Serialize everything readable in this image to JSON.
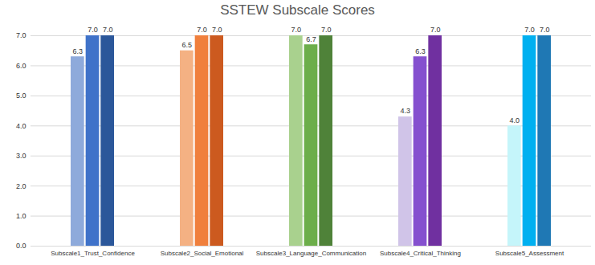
{
  "chart_data": {
    "type": "bar",
    "title": "SSTEW Subscale Scores",
    "categories": [
      "Subscale1_Trust_Confidence",
      "Subscale2_Social_Emotional",
      "Subscale3_Language_Communication",
      "Subscale4_Critical_Thinking",
      "Subscale5_Assessment"
    ],
    "series": [
      {
        "colors": [
          "#8eaadb",
          "#f4b183",
          "#a9d18e",
          "#d0c4e8",
          "#c5f5fa"
        ],
        "values": [
          6.3,
          6.5,
          7.0,
          4.3,
          4.0
        ],
        "value_labels": [
          "6.3",
          "6.5",
          "7.0",
          "4.3",
          "4.0"
        ]
      },
      {
        "colors": [
          "#3f72c9",
          "#f07f3c",
          "#6cae4a",
          "#8550cf",
          "#00b0f0"
        ],
        "values": [
          7.0,
          7.0,
          6.7,
          6.3,
          7.0
        ],
        "value_labels": [
          "7.0",
          "7.0",
          "6.7",
          "6.3",
          "7.0"
        ]
      },
      {
        "colors": [
          "#2b579a",
          "#cc5a1f",
          "#4f8239",
          "#7030a0",
          "#1f78b4"
        ],
        "values": [
          7.0,
          7.0,
          7.0,
          7.0,
          7.0
        ],
        "value_labels": [
          "7.0",
          "7.0",
          "7.0",
          "7.0",
          "7.0"
        ]
      }
    ],
    "ylim": [
      0,
      7
    ],
    "yticks": [
      {
        "value": 0,
        "label": "0.0"
      },
      {
        "value": 1,
        "label": "1.0"
      },
      {
        "value": 2,
        "label": "2.0"
      },
      {
        "value": 3,
        "label": "3.0"
      },
      {
        "value": 4,
        "label": "4.0"
      },
      {
        "value": 5,
        "label": "5.0"
      },
      {
        "value": 6,
        "label": "6.0"
      },
      {
        "value": 7,
        "label": "7.0"
      }
    ],
    "grid": true,
    "data_labels": true
  }
}
